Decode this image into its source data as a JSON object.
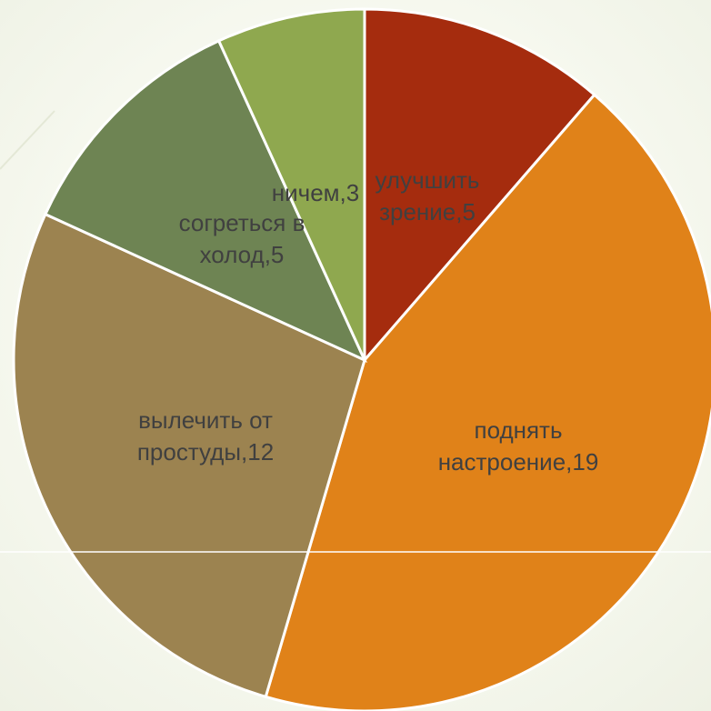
{
  "chart_data": {
    "type": "pie",
    "title": "",
    "slices": [
      {
        "label_lines": [
          "улучшить",
          "зрение,5"
        ],
        "value": 5,
        "color": "#a52c0e"
      },
      {
        "label_lines": [
          "поднять",
          "настроение,19"
        ],
        "value": 19,
        "color": "#e08219"
      },
      {
        "label_lines": [
          "вылечить от",
          "простуды,12"
        ],
        "value": 12,
        "color": "#9c8350"
      },
      {
        "label_lines": [
          "согреться в",
          "холод,5"
        ],
        "value": 5,
        "color": "#6e8453"
      },
      {
        "label_lines": [
          "ничем,3"
        ],
        "value": 3,
        "color": "#8fa84f"
      }
    ],
    "legend": "none"
  },
  "background": {
    "color": "#f6f8ef",
    "line_color": "#ffffff"
  }
}
